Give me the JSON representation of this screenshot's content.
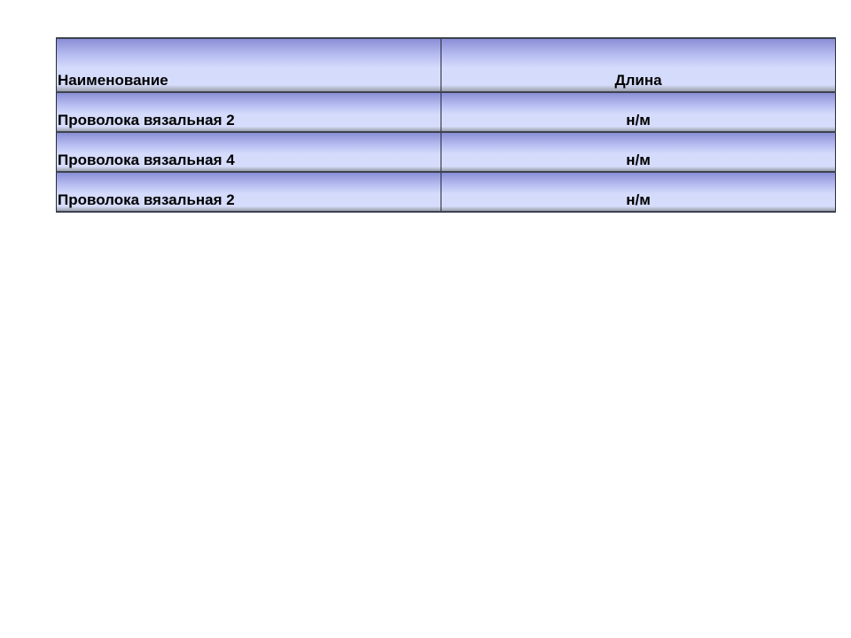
{
  "table": {
    "headers": [
      "Наименование",
      "Длина"
    ],
    "rows": [
      [
        "Проволока вязальная 2",
        "н/м"
      ],
      [
        "Проволока вязальная 4",
        "н/м"
      ],
      [
        "Проволока вязальная 2",
        "н/м"
      ]
    ]
  },
  "colors": {
    "cell_gradient_top": "#8a8fd6",
    "cell_gradient_mid": "#d4dbfb",
    "border": "#3c4250"
  }
}
